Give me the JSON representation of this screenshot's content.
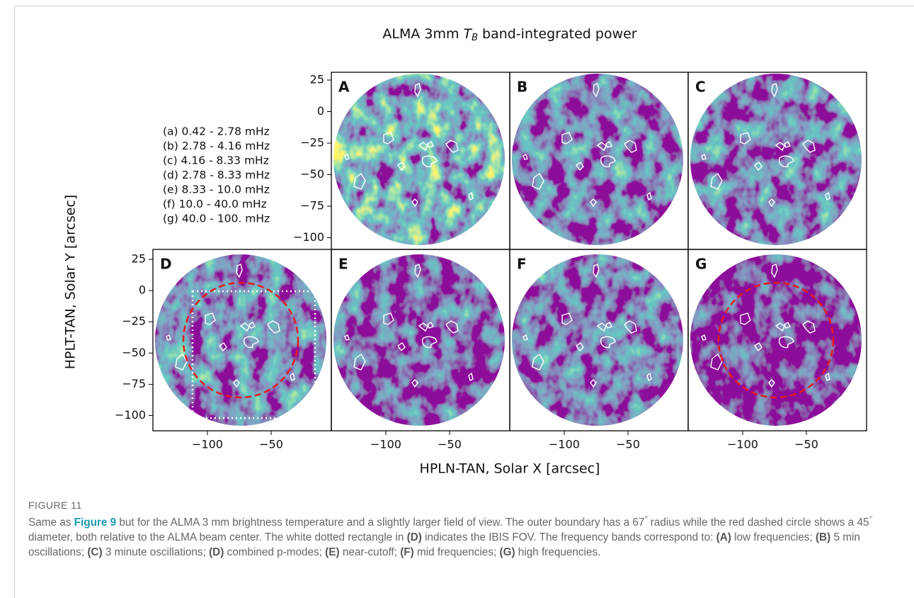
{
  "figure": {
    "title": {
      "prefix": "ALMA 3mm",
      "symbol": "T",
      "subscript": "B",
      "suffix": "band-integrated power"
    },
    "x_label": "HPLN-TAN, Solar X [arcsec]",
    "y_label": "HPLT-TAN, Solar Y [arcsec]",
    "bands": [
      "(a) 0.42 - 2.78 mHz",
      "(b) 2.78 - 4.16 mHz",
      "(c) 4.16 - 8.33 mHz",
      "(d) 2.78 - 8.33 mHz",
      "(e) 8.33 - 10.0 mHz",
      "(f) 10.0 - 40.0 mHz",
      "(g) 40.0 - 100. mHz"
    ],
    "panels": [
      {
        "label": "A"
      },
      {
        "label": "B"
      },
      {
        "label": "C"
      },
      {
        "label": "D"
      },
      {
        "label": "E"
      },
      {
        "label": "F"
      },
      {
        "label": "G"
      }
    ],
    "yticks": [
      "25",
      "0",
      "−25",
      "−50",
      "−75",
      "−100"
    ],
    "xticks": [
      "−100",
      "−50"
    ]
  },
  "caption": {
    "number": "FIGURE 11",
    "parts": [
      {
        "text": "Same as "
      },
      {
        "text": "Figure 9",
        "kind": "link"
      },
      {
        "text": " but for the ALMA 3 mm brightness temperature and a slightly larger field of view. The outer boundary has a 67"
      },
      {
        "text": "′′",
        "kind": "sup"
      },
      {
        "text": " radius while the red dashed circle shows a 45"
      },
      {
        "text": "′′",
        "kind": "sup"
      },
      {
        "text": " diameter, both relative to the ALMA beam center. The white dotted rectangle in "
      },
      {
        "text": "(D)",
        "kind": "bold"
      },
      {
        "text": " indicates the IBIS FOV. The frequency bands correspond to: "
      },
      {
        "text": "(A)",
        "kind": "bold"
      },
      {
        "text": " low frequencies; "
      },
      {
        "text": "(B)",
        "kind": "bold"
      },
      {
        "text": " 5 min oscillations; "
      },
      {
        "text": "(C)",
        "kind": "bold"
      },
      {
        "text": " 3 minute oscillations; "
      },
      {
        "text": "(D)",
        "kind": "bold"
      },
      {
        "text": " combined p-modes; "
      },
      {
        "text": "(E)",
        "kind": "bold"
      },
      {
        "text": " near-cutoff; "
      },
      {
        "text": "(F)",
        "kind": "bold"
      },
      {
        "text": " mid frequencies; "
      },
      {
        "text": "(G)",
        "kind": "bold"
      },
      {
        "text": " high frequencies."
      }
    ]
  }
}
